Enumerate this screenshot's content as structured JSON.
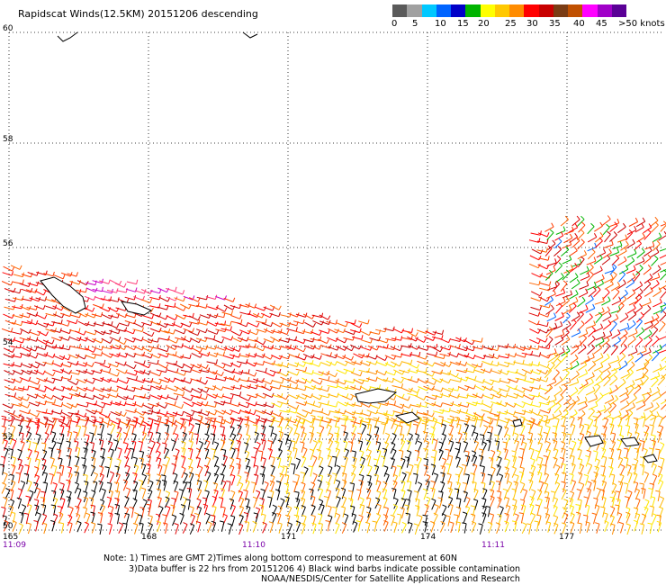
{
  "title": "Rapidscat Winds(12.5KM) 20151206 descending",
  "legend": {
    "colors": [
      "#5a5a5a",
      "#a0a0a0",
      "#00c8ff",
      "#0064ff",
      "#0000c8",
      "#00b400",
      "#ffff00",
      "#ffc800",
      "#ff8c00",
      "#ff0000",
      "#c80000",
      "#7a3c14",
      "#c05000",
      "#ff00ff",
      "#a000c8",
      "#5a0096"
    ],
    "labels": [
      "0",
      "5",
      "10",
      "15",
      "20",
      "25",
      "30",
      "35",
      "40",
      "45",
      ">50 knots"
    ]
  },
  "lat_labels": [
    "60",
    "58",
    "56",
    "54",
    "52",
    "50"
  ],
  "lon_labels": [
    "165",
    "168",
    "171",
    "174",
    "177"
  ],
  "time_labels": [
    "11:09",
    "11:10",
    "11:11"
  ],
  "notes": [
    "Note: 1) Times are GMT 2)Times along bottom correspond to measurement at 60N",
    "3)Data buffer is 22 hrs from 20151206 4) Black wind barbs indicate possible contamination",
    "NOAA/NESDIS/Center for Satellite Applications and Research"
  ]
}
